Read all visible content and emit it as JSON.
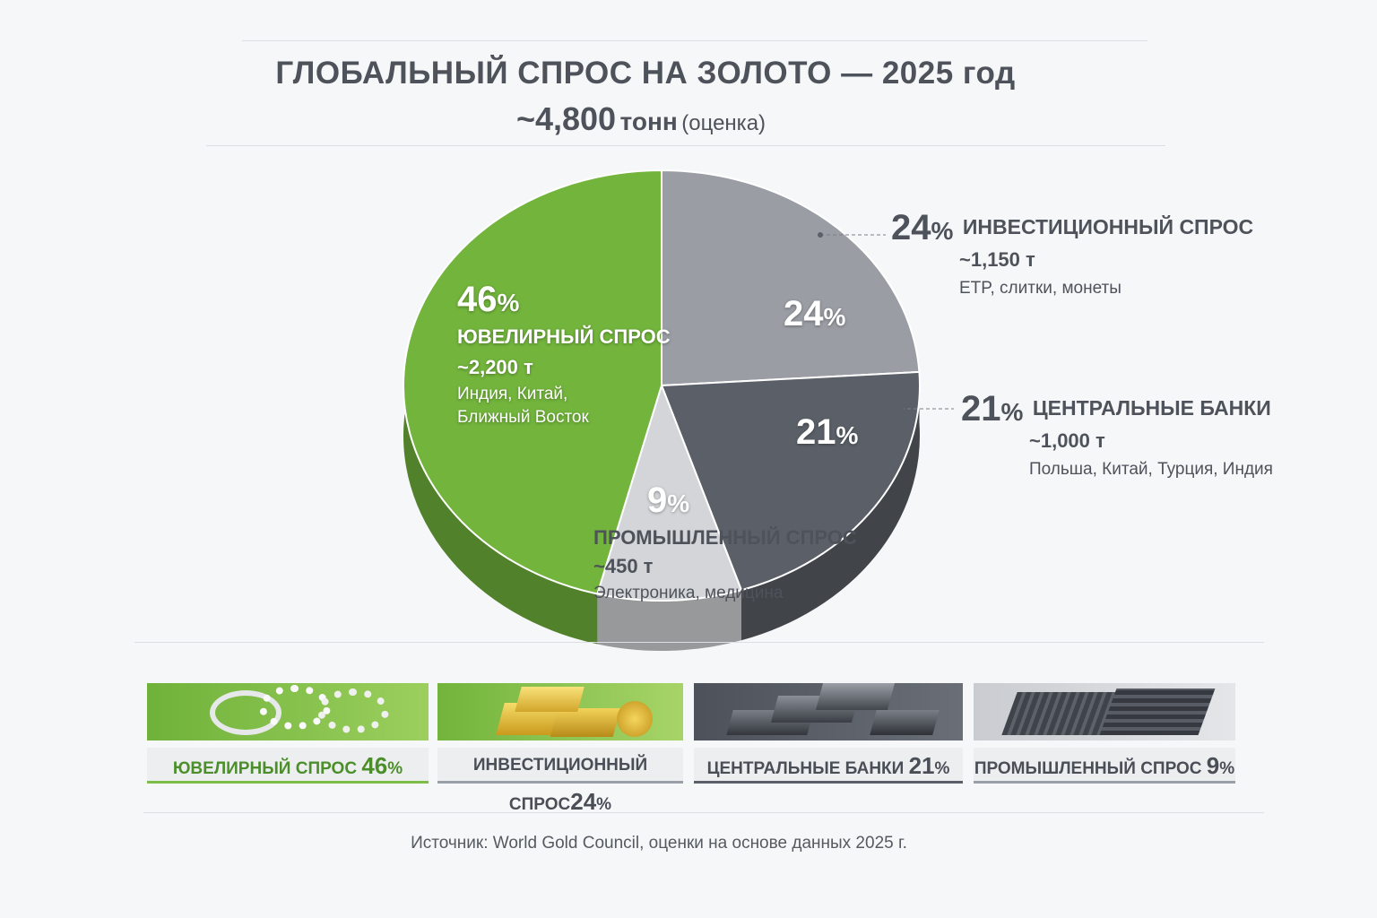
{
  "title": "ГЛОБАЛЬНЫЙ СПРОС НА ЗОЛОТО — 2025 год",
  "subtitle": {
    "amount": "~4,800",
    "unit": "тонн",
    "note": "(оценка)"
  },
  "chart_data": {
    "type": "pie",
    "title": "ГЛОБАЛЬНЫЙ СПРОС НА ЗОЛОТО — 2025 год",
    "total": "~4,800 тонн (оценка)",
    "slices": [
      {
        "name": "ИНВЕСТИЦИОННЫЙ СПРОС",
        "value": 24,
        "pct_label": "24%",
        "tonnes": "~1,150 т",
        "detail": "ETP, слитки, монеты",
        "color": "#9a9ea4"
      },
      {
        "name": "ЦЕНТРАЛЬНЫЕ БАНКИ",
        "value": 21,
        "pct_label": "21%",
        "tonnes": "~1,000 т",
        "detail": "Польша, Китай, Турция, Индия",
        "color": "#5b6068"
      },
      {
        "name": "ПРОМЫШЛЕННЫЙ СПРОС",
        "value": 9,
        "pct_label": "9%",
        "tonnes": "~450 т",
        "detail": "Электроника, медицина",
        "color": "#d3d5d8"
      },
      {
        "name": "ЮВЕЛИРНЫЙ СПРОС",
        "value": 46,
        "pct_label": "46%",
        "tonnes": "~2,200 т",
        "detail1": "Индия, Китай,",
        "detail2": "Ближный Восток",
        "color": "#72b43c"
      }
    ]
  },
  "cards": [
    {
      "label": "ЮВЕЛИРНЫЙ СПРОС",
      "pct": "46",
      "icon": "rings"
    },
    {
      "label": "ИНВЕСТИЦИОННЫЙ СПРОС",
      "pct": "24",
      "icon": "gold-bars"
    },
    {
      "label": "ЦЕНТРАЛЬНЫЕ БАНКИ",
      "pct": "21",
      "icon": "dark-bars"
    },
    {
      "label": "ПРОМЫШЛЕННЫЙ СПРОС",
      "pct": "9",
      "icon": "circuit-board"
    }
  ],
  "percent_sign": "%",
  "source": "Источник:  World Gold Council, оценки на основе данных 2025 г."
}
